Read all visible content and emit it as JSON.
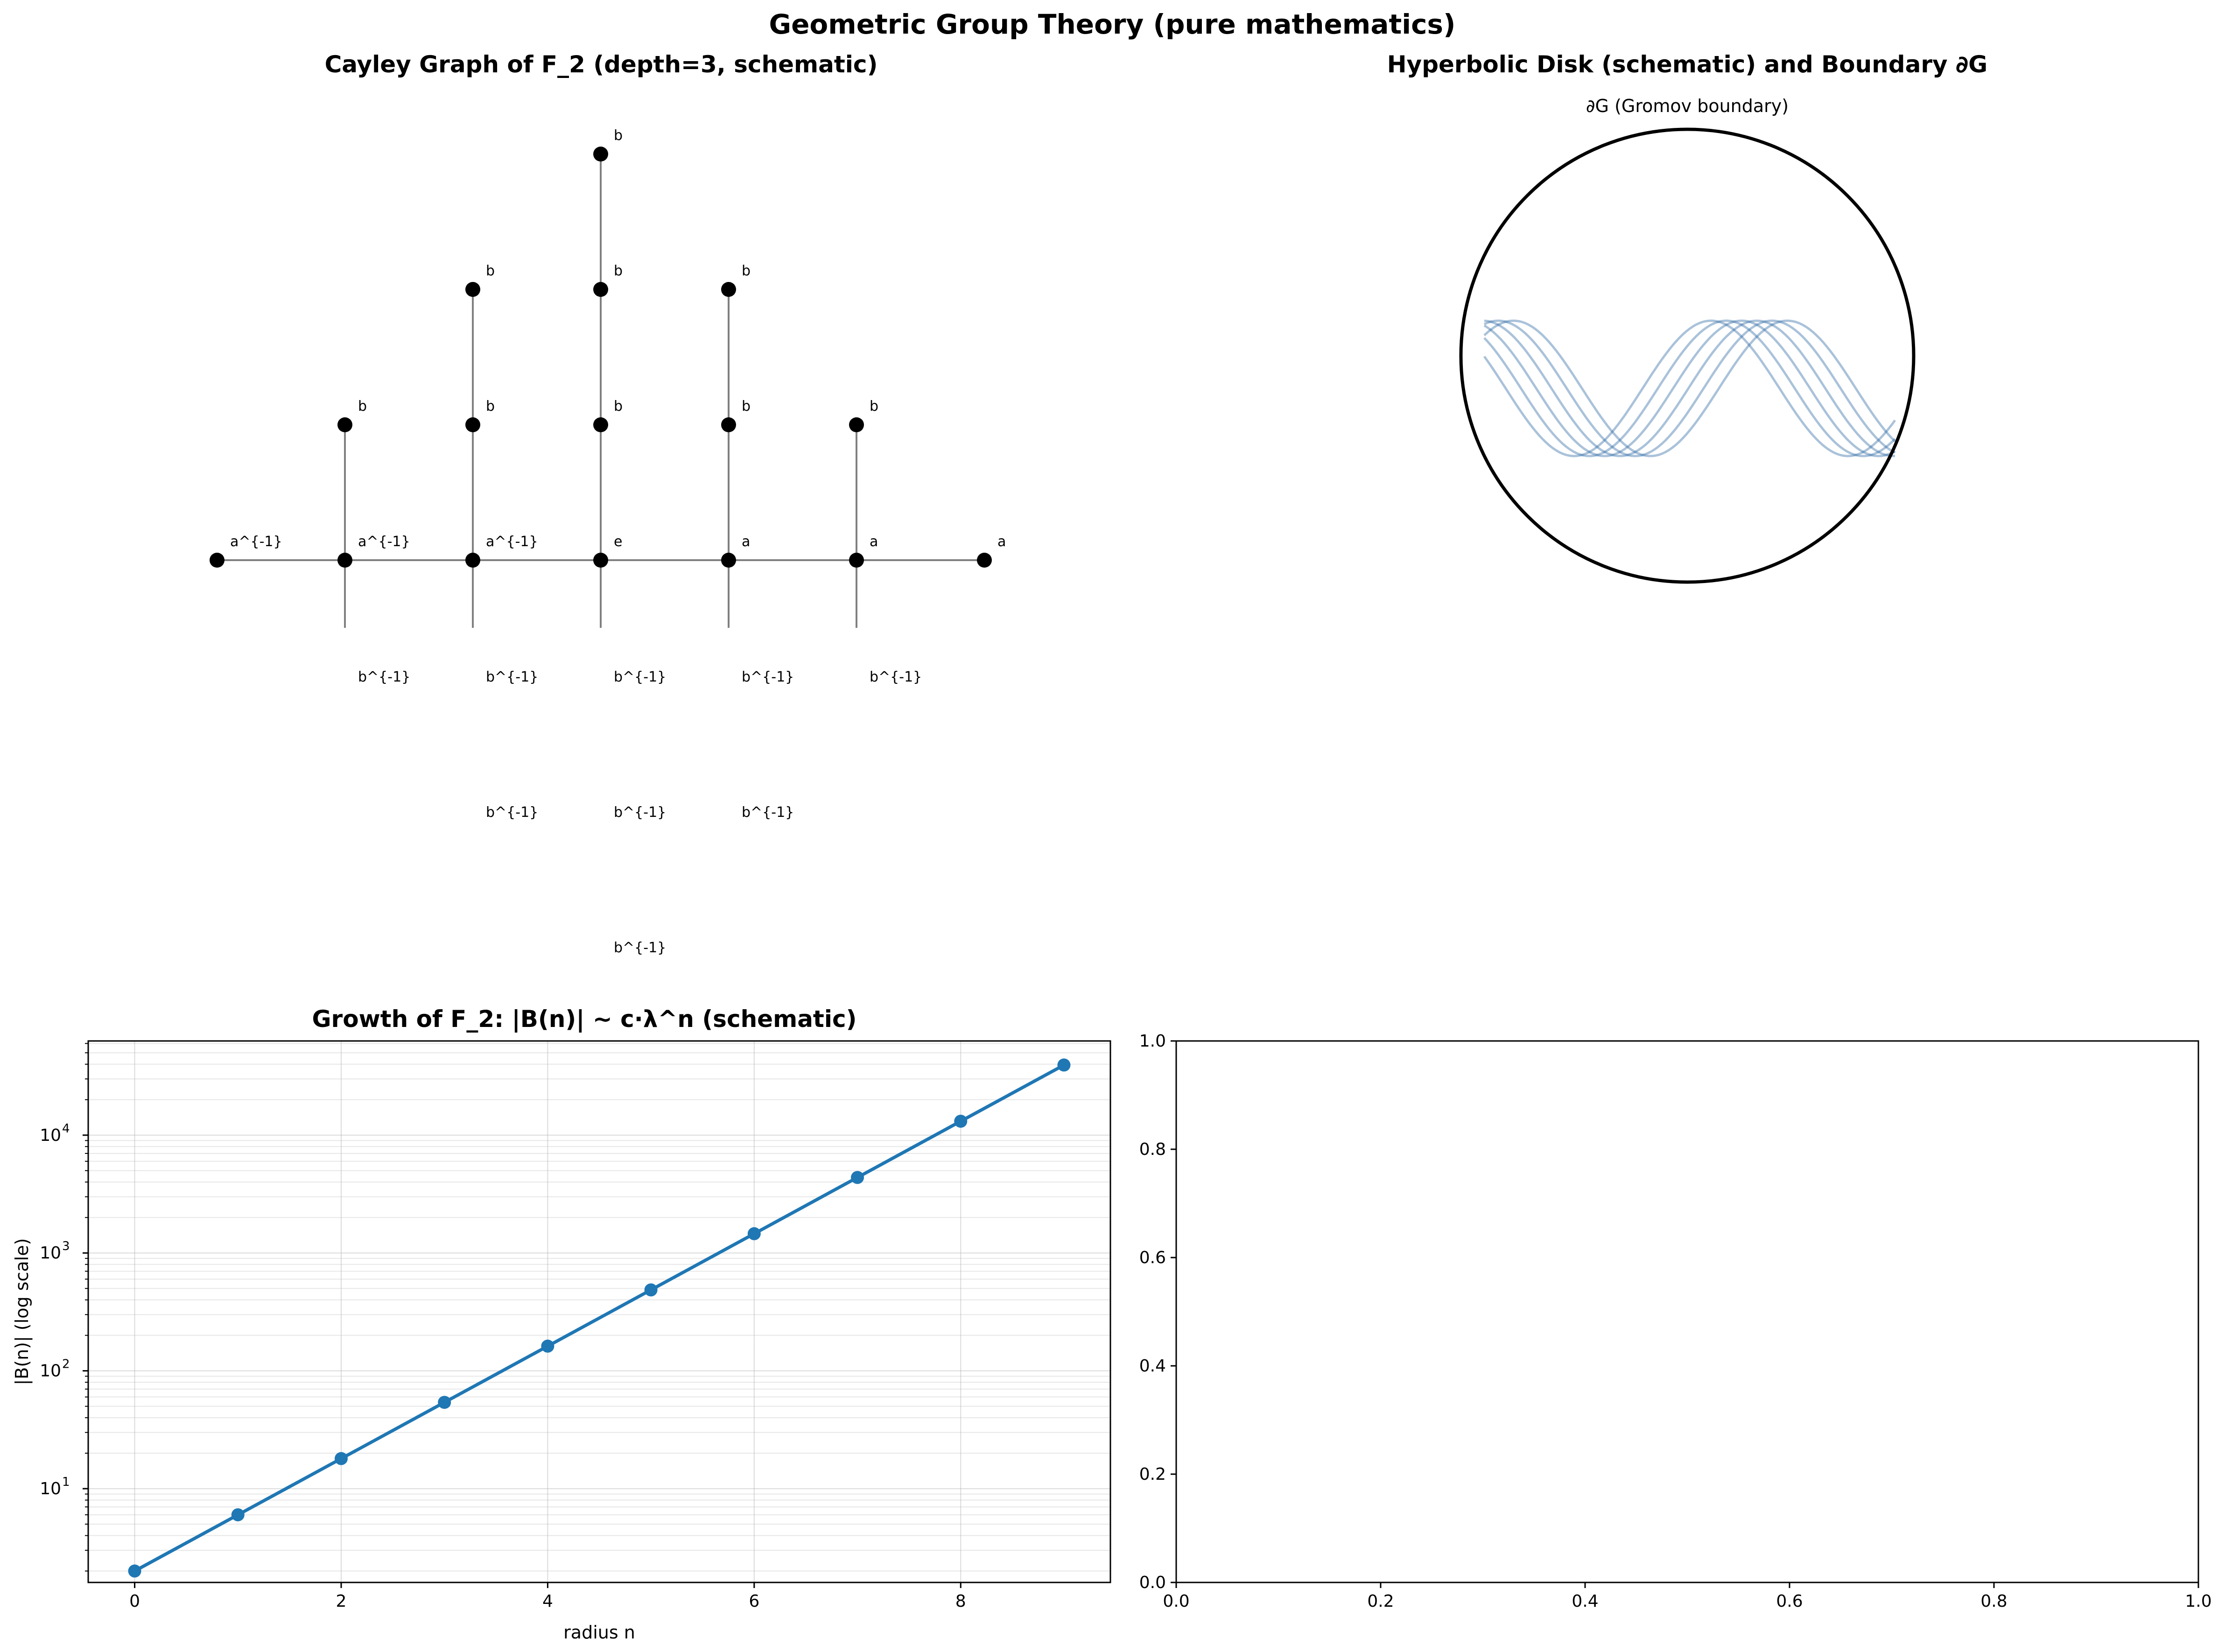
{
  "suptitle": "Geometric Group Theory (pure mathematics)",
  "chart_data": [
    {
      "id": "cayley",
      "type": "diagram",
      "title": "Cayley Graph of F_2 (depth=3, schematic)",
      "nodes": [
        {
          "x": -3,
          "y": 0,
          "label": "a^{-1}"
        },
        {
          "x": -2,
          "y": 0,
          "label": "a^{-1}"
        },
        {
          "x": -1,
          "y": 0,
          "label": "a^{-1}"
        },
        {
          "x": 0,
          "y": 0,
          "label": "e"
        },
        {
          "x": 1,
          "y": 0,
          "label": "a"
        },
        {
          "x": 2,
          "y": 0,
          "label": "a"
        },
        {
          "x": 3,
          "y": 0,
          "label": "a"
        },
        {
          "x": -2,
          "y": 1,
          "label": "b"
        },
        {
          "x": -1,
          "y": 1,
          "label": "b"
        },
        {
          "x": -1,
          "y": 2,
          "label": "b"
        },
        {
          "x": 0,
          "y": 1,
          "label": "b"
        },
        {
          "x": 0,
          "y": 2,
          "label": "b"
        },
        {
          "x": 0,
          "y": 3,
          "label": "b"
        },
        {
          "x": 1,
          "y": 1,
          "label": "b"
        },
        {
          "x": 1,
          "y": 2,
          "label": "b"
        },
        {
          "x": 2,
          "y": 1,
          "label": "b"
        }
      ],
      "inverse_labels": [
        {
          "x": -2,
          "y": -1,
          "label": "b^{-1}"
        },
        {
          "x": -1,
          "y": -1,
          "label": "b^{-1}"
        },
        {
          "x": 0,
          "y": -1,
          "label": "b^{-1}"
        },
        {
          "x": 1,
          "y": -1,
          "label": "b^{-1}"
        },
        {
          "x": 2,
          "y": -1,
          "label": "b^{-1}"
        },
        {
          "x": -1,
          "y": -2,
          "label": "b^{-1}"
        },
        {
          "x": 0,
          "y": -2,
          "label": "b^{-1}"
        },
        {
          "x": 1,
          "y": -2,
          "label": "b^{-1}"
        },
        {
          "x": 0,
          "y": -3,
          "label": "b^{-1}"
        }
      ],
      "edges": [
        [
          [
            -3,
            0
          ],
          [
            3,
            0
          ]
        ],
        [
          [
            -2,
            0
          ],
          [
            -2,
            1
          ]
        ],
        [
          [
            -1,
            0
          ],
          [
            -1,
            2
          ]
        ],
        [
          [
            0,
            0
          ],
          [
            0,
            3
          ]
        ],
        [
          [
            1,
            0
          ],
          [
            1,
            2
          ]
        ],
        [
          [
            2,
            0
          ],
          [
            2,
            1
          ]
        ],
        [
          [
            -2,
            0
          ],
          [
            -2,
            -0.5
          ]
        ],
        [
          [
            -1,
            0
          ],
          [
            -1,
            -0.5
          ]
        ],
        [
          [
            0,
            0
          ],
          [
            0,
            -0.5
          ]
        ],
        [
          [
            1,
            0
          ],
          [
            1,
            -0.5
          ]
        ],
        [
          [
            2,
            0
          ],
          [
            2,
            -0.5
          ]
        ]
      ],
      "colors": {
        "node": "#000000",
        "edge": "#808080"
      }
    },
    {
      "id": "disk",
      "type": "diagram",
      "title": "Hyperbolic Disk (schematic) and Boundary ∂G",
      "boundary_label": "∂G (Gromov boundary)",
      "geodesic_phases": [
        0,
        0.35,
        0.7,
        1.05,
        1.4,
        1.75
      ],
      "colors": {
        "circle": "#000000",
        "geodesic": "#1f5f9f"
      }
    },
    {
      "id": "growth",
      "type": "line",
      "title": "Growth of F_2: |B(n)| ~ c·λ^n (schematic)",
      "xlabel": "radius n",
      "ylabel": "|B(n)| (log scale)",
      "yscale": "log",
      "grid": true,
      "xlim": [
        -0.45,
        9.45
      ],
      "ylim": [
        1.6,
        63000
      ],
      "xticks": [
        0,
        2,
        4,
        6,
        8
      ],
      "yticks": [
        10,
        100,
        1000,
        10000
      ],
      "ytick_labels": [
        "10",
        "10",
        "10",
        "10"
      ],
      "ytick_exponents": [
        "1",
        "2",
        "3",
        "4"
      ],
      "series": [
        {
          "x": [
            0,
            1,
            2,
            3,
            4,
            5,
            6,
            7,
            8,
            9
          ],
          "values": [
            2,
            6,
            18,
            54,
            162,
            486,
            1458,
            4374,
            13122,
            39366
          ]
        }
      ],
      "colors": {
        "line": "#1f77b4"
      }
    },
    {
      "id": "empty",
      "type": "line",
      "xlim": [
        0,
        1
      ],
      "ylim": [
        0,
        1
      ],
      "xticks": [
        "0.0",
        "0.2",
        "0.4",
        "0.6",
        "0.8",
        "1.0"
      ],
      "yticks": [
        "0.0",
        "0.2",
        "0.4",
        "0.6",
        "0.8",
        "1.0"
      ]
    }
  ]
}
